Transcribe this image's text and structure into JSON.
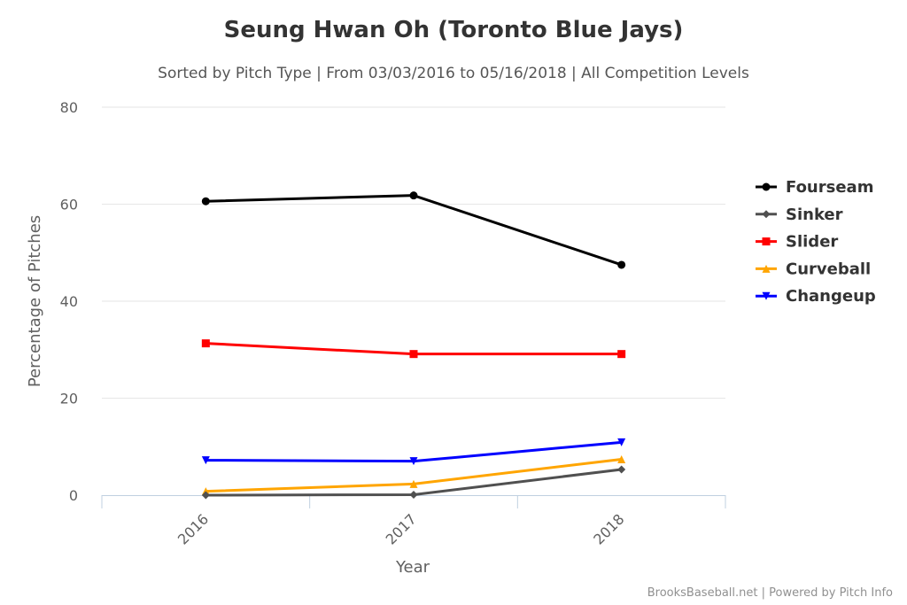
{
  "chart_data": {
    "type": "line",
    "title": "Seung Hwan Oh (Toronto Blue Jays)",
    "subtitle": "Sorted by Pitch Type | From 03/03/2016 to 05/16/2018 | All Competition Levels",
    "xlabel": "Year",
    "ylabel": "Percentage of Pitches",
    "categories": [
      "2016",
      "2017",
      "2018"
    ],
    "yticks": [
      0,
      20,
      40,
      60,
      80
    ],
    "ylim": [
      0,
      80
    ],
    "grid": true,
    "legend_position": "right",
    "series": [
      {
        "name": "Fourseam",
        "color": "#000000",
        "marker": "circle",
        "values": [
          60.6,
          61.8,
          47.5
        ]
      },
      {
        "name": "Sinker",
        "color": "#505050",
        "marker": "diamond",
        "values": [
          0.0,
          0.1,
          5.3
        ]
      },
      {
        "name": "Slider",
        "color": "#ff0000",
        "marker": "square",
        "values": [
          31.3,
          29.1,
          29.1
        ]
      },
      {
        "name": "Curveball",
        "color": "#ffa500",
        "marker": "triangle",
        "values": [
          0.8,
          2.3,
          7.4
        ]
      },
      {
        "name": "Changeup",
        "color": "#0000ff",
        "marker": "triangle-down",
        "values": [
          7.2,
          7.0,
          10.9
        ]
      }
    ],
    "credits": "BrooksBaseball.net | Powered by Pitch Info"
  }
}
